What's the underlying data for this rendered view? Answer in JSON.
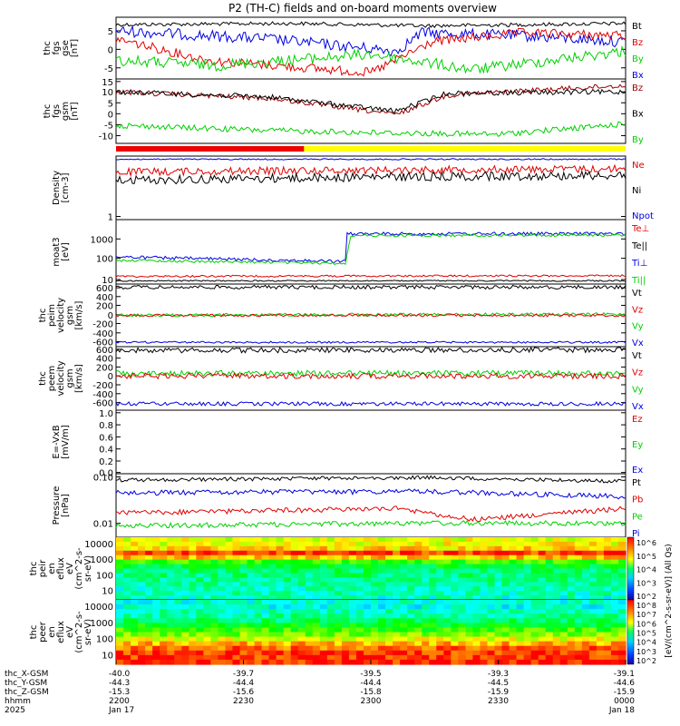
{
  "title": "P2 (TH-C) fields and on-board moments overview",
  "colors": {
    "black": "#000000",
    "red": "#e00000",
    "green": "#00d000",
    "blue": "#0000e0",
    "yellow": "#ffff00",
    "bar_red": "#ee0000",
    "darkred": "#990000"
  },
  "panels": [
    {
      "id": "fgs_gse",
      "ylabel": [
        "thc",
        "fgs",
        "gse",
        "[nT]"
      ],
      "ticks": [
        "5",
        "0",
        "-5"
      ],
      "legend": [
        {
          "label": "Bt",
          "color": "black"
        },
        {
          "label": "Bz",
          "color": "red"
        },
        {
          "label": "By",
          "color": "green"
        },
        {
          "label": "Bx",
          "color": "blue"
        }
      ]
    },
    {
      "id": "fgs_gsm",
      "ylabel": [
        "thc",
        "fgs",
        "gsm",
        "[nT]"
      ],
      "ticks": [
        "15",
        "10",
        "5",
        "0",
        "-5",
        "-10"
      ],
      "legend": [
        {
          "label": "Bz",
          "color": "darkred"
        },
        {
          "label": "Bx",
          "color": "black"
        },
        {
          "label": "By",
          "color": "green"
        }
      ]
    },
    {
      "id": "density",
      "ylabel": [
        "Density",
        "[cm-3]"
      ],
      "ticks": [
        "1"
      ],
      "legend": [
        {
          "label": "Ne",
          "color": "red"
        },
        {
          "label": "Ni",
          "color": "black"
        },
        {
          "label": "Npot",
          "color": "blue"
        }
      ]
    },
    {
      "id": "temperature",
      "ylabel": [
        "moat3",
        "[eV]"
      ],
      "ticks": [
        "1000",
        "100",
        "10"
      ],
      "legend": [
        {
          "label": "Te⊥",
          "color": "red"
        },
        {
          "label": "Te||",
          "color": "black"
        },
        {
          "label": "Ti⊥",
          "color": "blue"
        },
        {
          "label": "Ti||",
          "color": "green"
        }
      ]
    },
    {
      "id": "peim_velocity",
      "ylabel": [
        "thc",
        "peim",
        "velocity",
        "gsm",
        "[km/s]"
      ],
      "ticks": [
        "600",
        "400",
        "200",
        "0",
        "-200",
        "-400",
        "-600"
      ],
      "legend": [
        {
          "label": "Vt",
          "color": "black"
        },
        {
          "label": "Vz",
          "color": "red"
        },
        {
          "label": "Vy",
          "color": "green"
        },
        {
          "label": "Vx",
          "color": "blue"
        }
      ]
    },
    {
      "id": "peem_velocity",
      "ylabel": [
        "thc",
        "peem",
        "velocity",
        "gsm",
        "[km/s]"
      ],
      "ticks": [
        "600",
        "400",
        "200",
        "0",
        "-200",
        "-400",
        "-600"
      ],
      "legend": [
        {
          "label": "Vt",
          "color": "black"
        },
        {
          "label": "Vz",
          "color": "red"
        },
        {
          "label": "Vy",
          "color": "green"
        },
        {
          "label": "Vx",
          "color": "blue"
        }
      ]
    },
    {
      "id": "efield",
      "ylabel": [
        "E=-VxB",
        "[mV/m]"
      ],
      "ticks": [
        "1.0",
        "0.8",
        "0.6",
        "0.4",
        "0.2",
        "0.0"
      ],
      "legend": [
        {
          "label": "Ez",
          "color": "red"
        },
        {
          "label": "Ey",
          "color": "green"
        },
        {
          "label": "Ex",
          "color": "blue"
        }
      ]
    },
    {
      "id": "pressure",
      "ylabel": [
        "Pressure",
        "[nPa]"
      ],
      "ticks": [
        "0.10",
        "0.01"
      ],
      "legend": [
        {
          "label": "Pt",
          "color": "black"
        },
        {
          "label": "Pb",
          "color": "red"
        },
        {
          "label": "Pe",
          "color": "green"
        },
        {
          "label": "Pi",
          "color": "blue"
        }
      ]
    },
    {
      "id": "peir_eflux",
      "ylabel": [
        "thc",
        "peir",
        "en",
        "eflux",
        "eV",
        "(cm^2-s-",
        "sr-eV)"
      ],
      "ticks": [
        "10000",
        "1000",
        "100",
        "10"
      ]
    },
    {
      "id": "peer_eflux",
      "ylabel": [
        "thc",
        "peer",
        "en",
        "eflux",
        "eV",
        "(cm^2-s-",
        "sr-eV)"
      ],
      "ticks": [
        "10000",
        "1000",
        "100",
        "10"
      ]
    }
  ],
  "colorbar_label": "[eV/(cm^2-s-sr-eV)] (All Qs)",
  "colorbar_ticks_top": [
    "10^6",
    "10^5",
    "10^4",
    "10^3",
    "10^2"
  ],
  "colorbar_ticks_bottom": [
    "10^8",
    "10^7",
    "10^6",
    "10^5",
    "10^4",
    "10^3",
    "10^2"
  ],
  "mode_bar": [
    {
      "start": 0.0,
      "end": 0.369,
      "color": "bar_red"
    },
    {
      "start": 0.369,
      "end": 1.0,
      "color": "yellow"
    }
  ],
  "footer": {
    "row_labels": [
      "thc_X-GSM",
      "thc_Y-GSM",
      "thc_Z-GSM",
      "hhmm",
      "2025"
    ],
    "columns": [
      {
        "values": [
          "-40.0",
          "-44.3",
          "-15.3",
          "2200",
          "Jan 17"
        ]
      },
      {
        "values": [
          "-39.7",
          "-44.4",
          "-15.6",
          "2230",
          ""
        ]
      },
      {
        "values": [
          "-39.5",
          "-44.4",
          "-15.8",
          "2300",
          ""
        ]
      },
      {
        "values": [
          "-39.3",
          "-44.5",
          "-15.9",
          "2330",
          ""
        ]
      },
      {
        "values": [
          "-39.1",
          "-44.6",
          "-15.9",
          "0000",
          "Jan 18"
        ]
      }
    ]
  },
  "chart_data": {
    "type": "line",
    "title": "P2 (TH-C) fields and on-board moments overview",
    "x_ticks": [
      "2200",
      "2230",
      "2300",
      "2330",
      "0000"
    ],
    "time_range": [
      "2025-01-17 22:00",
      "2025-01-18 00:00"
    ],
    "series_summary": [
      {
        "panel": "fgs_gse",
        "name": "Bt",
        "values_nT": [
          7,
          8,
          7,
          6,
          8
        ]
      },
      {
        "panel": "fgs_gse",
        "name": "Bz",
        "values_nT": [
          3,
          -3,
          -5,
          2,
          4
        ]
      },
      {
        "panel": "fgs_gse",
        "name": "By",
        "values_nT": [
          -2,
          -6,
          -3,
          -6,
          0
        ]
      },
      {
        "panel": "fgs_gse",
        "name": "Bx",
        "values_nT": [
          5,
          6,
          0,
          5,
          3
        ]
      },
      {
        "panel": "fgs_gsm",
        "name": "Bx",
        "values_nT": [
          10,
          8,
          2,
          10,
          9
        ]
      },
      {
        "panel": "fgs_gsm",
        "name": "By",
        "values_nT": [
          -5,
          -8,
          -8,
          -9,
          -3
        ]
      },
      {
        "panel": "density",
        "name": "Ne",
        "values_cm3": [
          7,
          8,
          7,
          8,
          9
        ]
      },
      {
        "panel": "density",
        "name": "Ni",
        "values_cm3": [
          3,
          4,
          3,
          4,
          3
        ]
      },
      {
        "panel": "temperature",
        "name": "Ti⊥",
        "values_eV": [
          150,
          110,
          1900,
          1900,
          1800
        ]
      },
      {
        "panel": "temperature",
        "name": "Te||",
        "values_eV": [
          8,
          8,
          8,
          8,
          8
        ]
      },
      {
        "panel": "peim_velocity",
        "name": "Vx",
        "values_kms": [
          -500,
          -510,
          -520,
          -500,
          -510
        ]
      },
      {
        "panel": "peem_velocity",
        "name": "Vx",
        "values_kms": [
          -550,
          -540,
          -560,
          -530,
          -550
        ]
      },
      {
        "panel": "pressure",
        "name": "Pt",
        "values_nPa": [
          0.09,
          0.1,
          0.09,
          0.1,
          0.08
        ]
      },
      {
        "panel": "pressure",
        "name": "Pi",
        "values_nPa": [
          0.05,
          0.05,
          0.06,
          0.05,
          0.04
        ]
      }
    ]
  }
}
